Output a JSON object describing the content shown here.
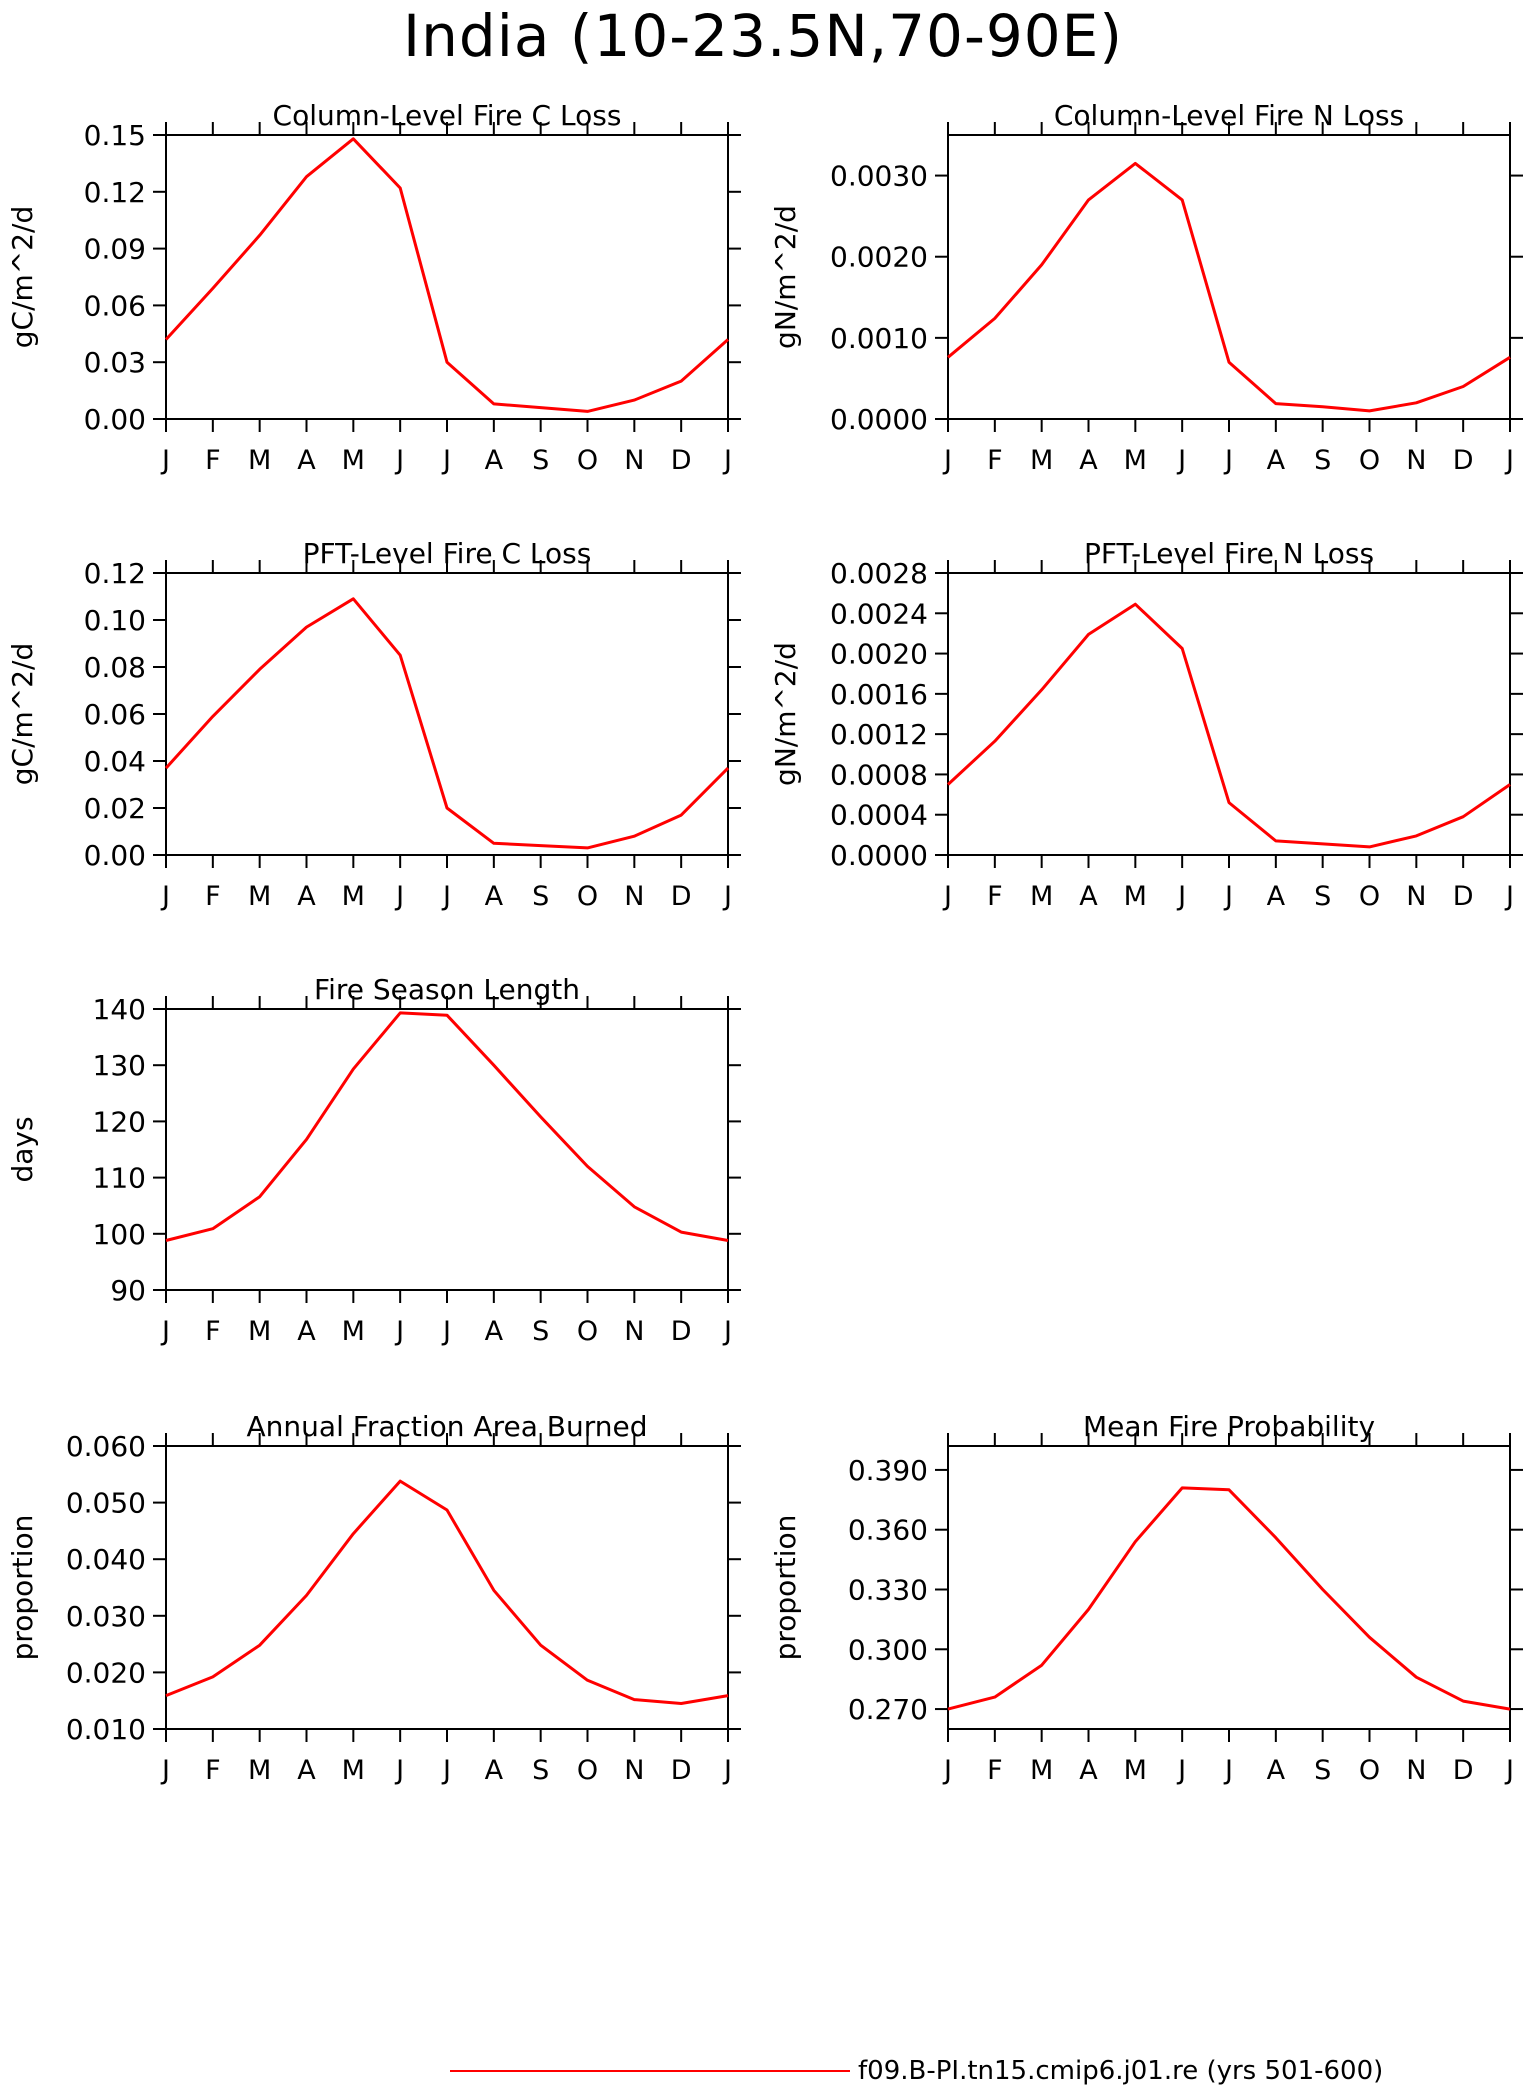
{
  "page_title": "India (10-23.5N,70-90E)",
  "line_color": "#ff0000",
  "legend": {
    "label": "f09.B-PI.tn15.cmip6.j01.re (yrs 501-600)"
  },
  "chart_data": [
    {
      "id": "c1",
      "type": "line",
      "title": "Column-Level Fire C Loss",
      "ylabel": "gC/m^2/d",
      "categories": [
        "J",
        "F",
        "M",
        "A",
        "M",
        "J",
        "J",
        "A",
        "S",
        "O",
        "N",
        "D",
        "J"
      ],
      "ylim": [
        0,
        0.15
      ],
      "yticks": [
        0,
        0.03,
        0.06,
        0.09,
        0.12,
        0.15
      ],
      "ytick_labels": [
        "0.00",
        "0.03",
        "0.06",
        "0.09",
        "0.12",
        "0.15"
      ],
      "values": [
        0.042,
        0.069,
        0.097,
        0.128,
        0.148,
        0.122,
        0.03,
        0.008,
        0.006,
        0.004,
        0.01,
        0.02,
        0.042
      ]
    },
    {
      "id": "c2",
      "type": "line",
      "title": "Column-Level Fire N Loss",
      "ylabel": "gN/m^2/d",
      "categories": [
        "J",
        "F",
        "M",
        "A",
        "M",
        "J",
        "J",
        "A",
        "S",
        "O",
        "N",
        "D",
        "J"
      ],
      "ylim": [
        0,
        0.0035
      ],
      "yticks": [
        0,
        0.001,
        0.002,
        0.003
      ],
      "ytick_labels": [
        "0.0000",
        "0.0010",
        "0.0020",
        "0.0030"
      ],
      "values": [
        0.00076,
        0.00124,
        0.0019,
        0.0027,
        0.00315,
        0.0027,
        0.0007,
        0.00019,
        0.00015,
        0.0001,
        0.0002,
        0.0004,
        0.00076
      ]
    },
    {
      "id": "c3",
      "type": "line",
      "title": "PFT-Level Fire C Loss",
      "ylabel": "gC/m^2/d",
      "categories": [
        "J",
        "F",
        "M",
        "A",
        "M",
        "J",
        "J",
        "A",
        "S",
        "O",
        "N",
        "D",
        "J"
      ],
      "ylim": [
        0,
        0.12
      ],
      "yticks": [
        0,
        0.02,
        0.04,
        0.06,
        0.08,
        0.1,
        0.12
      ],
      "ytick_labels": [
        "0.00",
        "0.02",
        "0.04",
        "0.06",
        "0.08",
        "0.10",
        "0.12"
      ],
      "values": [
        0.037,
        0.059,
        0.079,
        0.097,
        0.109,
        0.085,
        0.02,
        0.005,
        0.004,
        0.003,
        0.008,
        0.017,
        0.037
      ]
    },
    {
      "id": "c4",
      "type": "line",
      "title": "PFT-Level Fire N Loss",
      "ylabel": "gN/m^2/d",
      "categories": [
        "J",
        "F",
        "M",
        "A",
        "M",
        "J",
        "J",
        "A",
        "S",
        "O",
        "N",
        "D",
        "J"
      ],
      "ylim": [
        0,
        0.0028
      ],
      "yticks": [
        0,
        0.0004,
        0.0008,
        0.0012,
        0.0016,
        0.002,
        0.0024,
        0.0028
      ],
      "ytick_labels": [
        "0.0000",
        "0.0004",
        "0.0008",
        "0.0012",
        "0.0016",
        "0.0020",
        "0.0024",
        "0.0028"
      ],
      "values": [
        0.0007,
        0.00113,
        0.00164,
        0.00219,
        0.00249,
        0.00205,
        0.00052,
        0.00014,
        0.00011,
        8e-05,
        0.00019,
        0.00038,
        0.0007
      ]
    },
    {
      "id": "c5",
      "type": "line",
      "title": "Fire Season Length",
      "ylabel": "days",
      "categories": [
        "J",
        "F",
        "M",
        "A",
        "M",
        "J",
        "J",
        "A",
        "S",
        "O",
        "N",
        "D",
        "J"
      ],
      "ylim": [
        90,
        140
      ],
      "yticks": [
        90,
        100,
        110,
        120,
        130,
        140
      ],
      "ytick_labels": [
        "90",
        "100",
        "110",
        "120",
        "130",
        "140"
      ],
      "values": [
        98.8,
        100.9,
        106.6,
        116.8,
        129.3,
        139.3,
        138.9,
        130.0,
        120.8,
        112.0,
        104.8,
        100.3,
        98.8
      ]
    },
    {
      "id": "c6",
      "type": "line",
      "title": "Annual Fraction Area Burned",
      "ylabel": "proportion",
      "categories": [
        "J",
        "F",
        "M",
        "A",
        "M",
        "J",
        "J",
        "A",
        "S",
        "O",
        "N",
        "D",
        "J"
      ],
      "ylim": [
        0.01,
        0.06
      ],
      "yticks": [
        0.01,
        0.02,
        0.03,
        0.04,
        0.05,
        0.06
      ],
      "ytick_labels": [
        "0.010",
        "0.020",
        "0.030",
        "0.040",
        "0.050",
        "0.060"
      ],
      "values": [
        0.0159,
        0.0192,
        0.0248,
        0.0336,
        0.0445,
        0.0538,
        0.0487,
        0.0345,
        0.0248,
        0.0186,
        0.0152,
        0.0145,
        0.0159
      ]
    },
    {
      "id": "c7",
      "type": "line",
      "title": "Mean Fire Probability",
      "ylabel": "proportion",
      "categories": [
        "J",
        "F",
        "M",
        "A",
        "M",
        "J",
        "J",
        "A",
        "S",
        "O",
        "N",
        "D",
        "J"
      ],
      "ylim": [
        0.26,
        0.402
      ],
      "yticks": [
        0.27,
        0.3,
        0.33,
        0.36,
        0.39
      ],
      "ytick_labels": [
        "0.270",
        "0.300",
        "0.330",
        "0.360",
        "0.390"
      ],
      "values": [
        0.27,
        0.276,
        0.292,
        0.32,
        0.354,
        0.381,
        0.38,
        0.356,
        0.33,
        0.306,
        0.286,
        0.274,
        0.27
      ]
    }
  ]
}
